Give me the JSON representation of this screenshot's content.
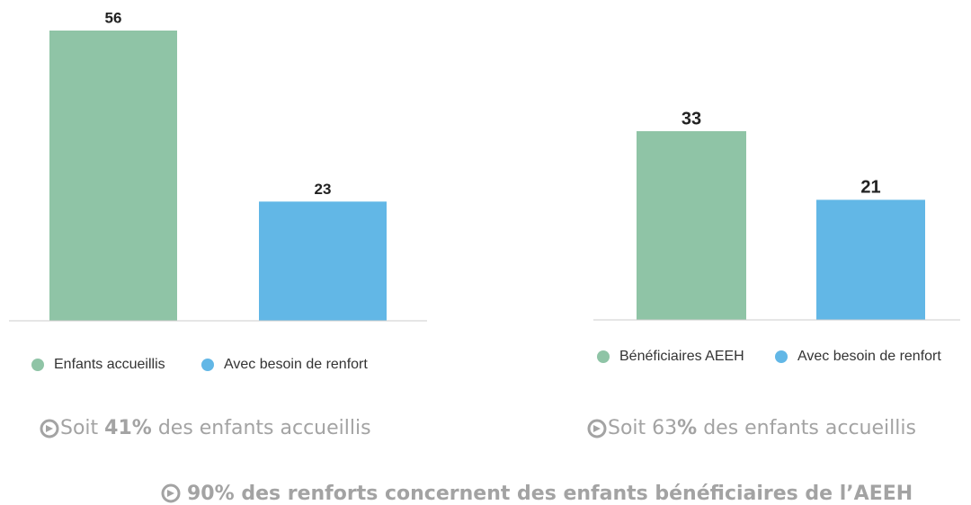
{
  "chart_data": [
    {
      "type": "bar",
      "categories": [
        "Enfants accueillis",
        "Avec besoin de renfort"
      ],
      "values": [
        56,
        23
      ],
      "colors": [
        "#8fc4a6",
        "#62b7e6"
      ],
      "legend": "bottom",
      "annotation": [
        "Soit ",
        "41%",
        " des enfants accueillis"
      ]
    },
    {
      "type": "bar",
      "categories": [
        "Bénéficiaires AEEH",
        "Avec besoin de renfort"
      ],
      "values": [
        33,
        21
      ],
      "colors": [
        "#8fc4a6",
        "#62b7e6"
      ],
      "legend": "bottom",
      "annotation": [
        "Soit 63",
        "%",
        " des enfants accueillis"
      ]
    }
  ],
  "footer": "90% des renforts concernent des enfants bénéficiaires de l’AEEH"
}
